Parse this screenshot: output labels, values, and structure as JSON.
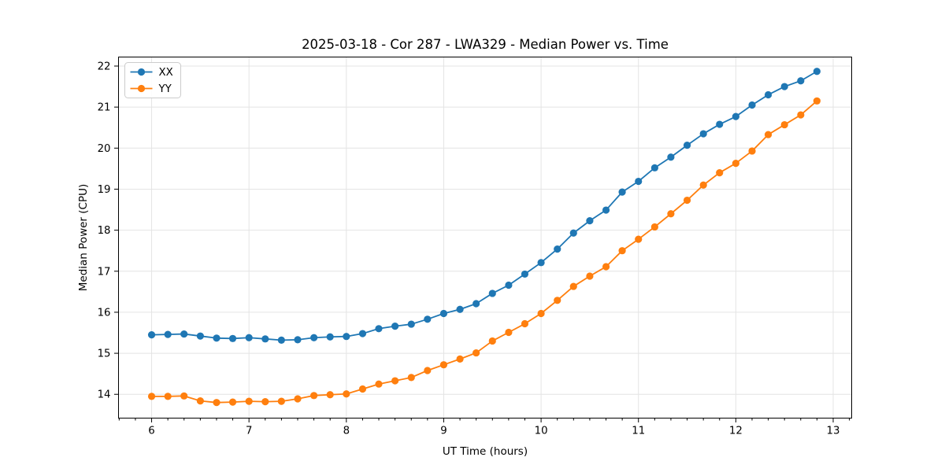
{
  "figure": {
    "title": "2025-03-18 - Cor 287 - LWA329 - Median Power vs. Time",
    "xlabel": "UT Time (hours)",
    "ylabel": "Median Power (CPU)"
  },
  "colors": {
    "background": "#ffffff",
    "spine": "#000000",
    "grid": "#e4e4e4",
    "tick": "#000000",
    "text": "#000000",
    "legend_border": "#cccccc",
    "series_xx": "#1f77b4",
    "series_yy": "#ff7f0e"
  },
  "chart_data": {
    "type": "line",
    "title": "2025-03-18 - Cor 287 - LWA329 - Median Power vs. Time",
    "xlabel": "UT Time (hours)",
    "ylabel": "Median Power (CPU)",
    "grid": true,
    "legend_position": "upper left",
    "marker": "circle",
    "xlim": [
      5.66,
      13.19
    ],
    "ylim": [
      13.42,
      22.22
    ],
    "x_ticks": [
      6,
      7,
      8,
      9,
      10,
      11,
      12,
      13
    ],
    "y_ticks": [
      14,
      15,
      16,
      17,
      18,
      19,
      20,
      21,
      22
    ],
    "x_minor_step": 0.1667,
    "x": [
      6.0,
      6.167,
      6.333,
      6.5,
      6.667,
      6.833,
      7.0,
      7.167,
      7.333,
      7.5,
      7.667,
      7.833,
      8.0,
      8.167,
      8.333,
      8.5,
      8.667,
      8.833,
      9.0,
      9.167,
      9.333,
      9.5,
      9.667,
      9.833,
      10.0,
      10.167,
      10.333,
      10.5,
      10.667,
      10.833,
      11.0,
      11.167,
      11.333,
      11.5,
      11.667,
      11.833,
      12.0,
      12.167,
      12.333,
      12.5,
      12.667,
      12.833
    ],
    "series": [
      {
        "name": "XX",
        "color": "#1f77b4",
        "values": [
          15.45,
          15.46,
          15.47,
          15.42,
          15.37,
          15.36,
          15.38,
          15.35,
          15.32,
          15.33,
          15.38,
          15.4,
          15.41,
          15.48,
          15.6,
          15.66,
          15.71,
          15.83,
          15.97,
          16.07,
          16.21,
          16.46,
          16.66,
          16.93,
          17.21,
          17.54,
          17.93,
          18.23,
          18.49,
          18.93,
          19.19,
          19.52,
          19.78,
          20.07,
          20.35,
          20.58,
          20.77,
          21.05,
          21.3,
          21.5,
          21.64,
          21.87
        ]
      },
      {
        "name": "YY",
        "color": "#ff7f0e",
        "values": [
          13.95,
          13.95,
          13.96,
          13.84,
          13.8,
          13.81,
          13.83,
          13.82,
          13.83,
          13.89,
          13.97,
          13.99,
          14.01,
          14.13,
          14.25,
          14.33,
          14.41,
          14.58,
          14.72,
          14.86,
          15.01,
          15.3,
          15.51,
          15.72,
          15.97,
          16.29,
          16.63,
          16.88,
          17.11,
          17.5,
          17.78,
          18.08,
          18.4,
          18.73,
          19.1,
          19.4,
          19.63,
          19.93,
          20.33,
          20.57,
          20.81,
          21.15
        ]
      }
    ]
  }
}
